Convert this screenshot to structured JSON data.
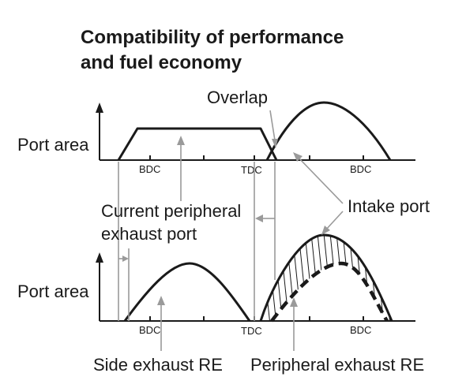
{
  "title": {
    "line1": "Compatibility of performance",
    "line2": "and fuel economy"
  },
  "top_chart": {
    "y_label": "Port area",
    "ticks": {
      "bdc_left": "BDC",
      "tdc": "TDC",
      "bdc_right": "BDC"
    }
  },
  "bottom_chart": {
    "y_label": "Port area",
    "ticks": {
      "bdc_left": "BDC",
      "tdc": "TDC",
      "bdc_right": "BDC"
    }
  },
  "labels": {
    "overlap": "Overlap",
    "current_line1": "Current peripheral",
    "current_line2": "exhaust port",
    "intake_port": "Intake port",
    "side_exhaust": "Side exhaust RE",
    "peripheral_exhaust": "Peripheral exhaust RE"
  },
  "colors": {
    "ink": "#1a1a1a",
    "leader": "#9a9a9a",
    "background": "#ffffff"
  }
}
